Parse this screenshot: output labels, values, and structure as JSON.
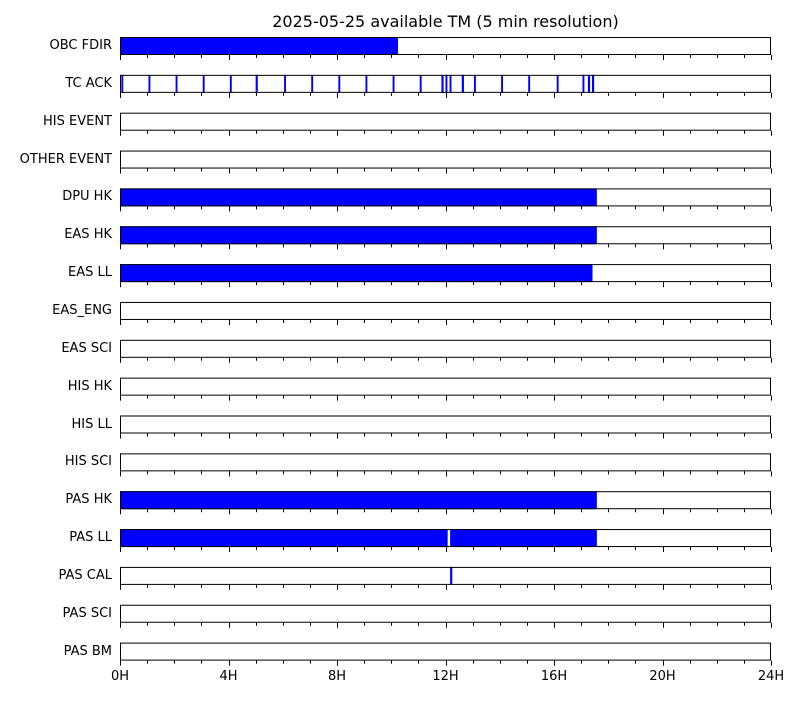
{
  "chart_data": {
    "type": "timeline",
    "title": "2025-05-25 available TM (5 min resolution)",
    "x_range_hours": [
      0,
      24
    ],
    "x_ticks": [
      {
        "hour": 0,
        "label": "0H"
      },
      {
        "hour": 4,
        "label": "4H"
      },
      {
        "hour": 8,
        "label": "8H"
      },
      {
        "hour": 12,
        "label": "12H"
      },
      {
        "hour": 16,
        "label": "16H"
      },
      {
        "hour": 20,
        "label": "20H"
      },
      {
        "hour": 24,
        "label": "24H"
      }
    ],
    "minor_tick_hours": 1,
    "bar_color": "#0000ff",
    "rows": [
      {
        "name": "OBC FDIR",
        "intervals": [
          [
            0,
            10.25
          ]
        ]
      },
      {
        "name": "TC ACK",
        "intervals": [
          [
            0.05,
            0.12
          ],
          [
            1.05,
            1.12
          ],
          [
            2.05,
            2.12
          ],
          [
            3.05,
            3.12
          ],
          [
            4.05,
            4.12
          ],
          [
            5.0,
            5.08
          ],
          [
            6.05,
            6.12
          ],
          [
            7.05,
            7.12
          ],
          [
            8.05,
            8.12
          ],
          [
            9.05,
            9.12
          ],
          [
            10.05,
            10.12
          ],
          [
            11.05,
            11.12
          ],
          [
            11.85,
            11.93
          ],
          [
            12.0,
            12.07
          ],
          [
            12.15,
            12.22
          ],
          [
            12.6,
            12.68
          ],
          [
            13.05,
            13.12
          ],
          [
            14.05,
            14.12
          ],
          [
            15.05,
            15.12
          ],
          [
            16.1,
            16.17
          ],
          [
            17.05,
            17.12
          ],
          [
            17.25,
            17.33
          ],
          [
            17.4,
            17.48
          ]
        ]
      },
      {
        "name": "HIS EVENT",
        "intervals": []
      },
      {
        "name": "OTHER EVENT",
        "intervals": []
      },
      {
        "name": "DPU HK",
        "intervals": [
          [
            0,
            17.58
          ]
        ]
      },
      {
        "name": "EAS HK",
        "intervals": [
          [
            0,
            17.58
          ]
        ]
      },
      {
        "name": "EAS LL",
        "intervals": [
          [
            0,
            17.42
          ]
        ]
      },
      {
        "name": "EAS_ENG",
        "intervals": []
      },
      {
        "name": "EAS SCI",
        "intervals": []
      },
      {
        "name": "HIS HK",
        "intervals": []
      },
      {
        "name": "HIS LL",
        "intervals": []
      },
      {
        "name": "HIS SCI",
        "intervals": []
      },
      {
        "name": "PAS HK",
        "intervals": [
          [
            0,
            17.58
          ]
        ]
      },
      {
        "name": "PAS LL",
        "intervals": [
          [
            0,
            12.08
          ],
          [
            12.17,
            17.58
          ]
        ]
      },
      {
        "name": "PAS CAL",
        "intervals": [
          [
            12.17,
            12.25
          ]
        ]
      },
      {
        "name": "PAS SCI",
        "intervals": []
      },
      {
        "name": "PAS BM",
        "intervals": []
      }
    ]
  }
}
